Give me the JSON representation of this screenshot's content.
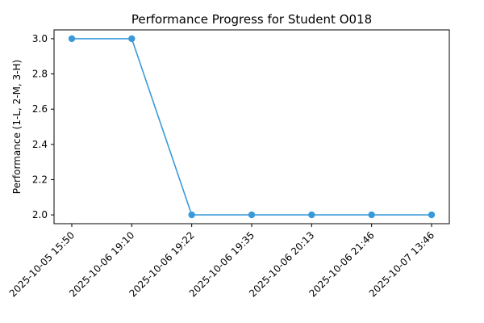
{
  "chart_data": {
    "type": "line",
    "title": "Performance Progress for Student O018",
    "xlabel": "",
    "ylabel": "Performance (1-L, 2-M, 3-H)",
    "categories": [
      "2025-10-05 15:50",
      "2025-10-06 19:10",
      "2025-10-06 19:22",
      "2025-10-06 19:35",
      "2025-10-06 20:13",
      "2025-10-06 21:46",
      "2025-10-07 13:46"
    ],
    "values": [
      3,
      3,
      2,
      2,
      2,
      2,
      2
    ],
    "ylim": [
      1.95,
      3.05
    ],
    "yticks": [
      "2.0",
      "2.2",
      "2.4",
      "2.6",
      "2.8",
      "3.0"
    ],
    "color": "#3a9ad9",
    "grid": false
  }
}
